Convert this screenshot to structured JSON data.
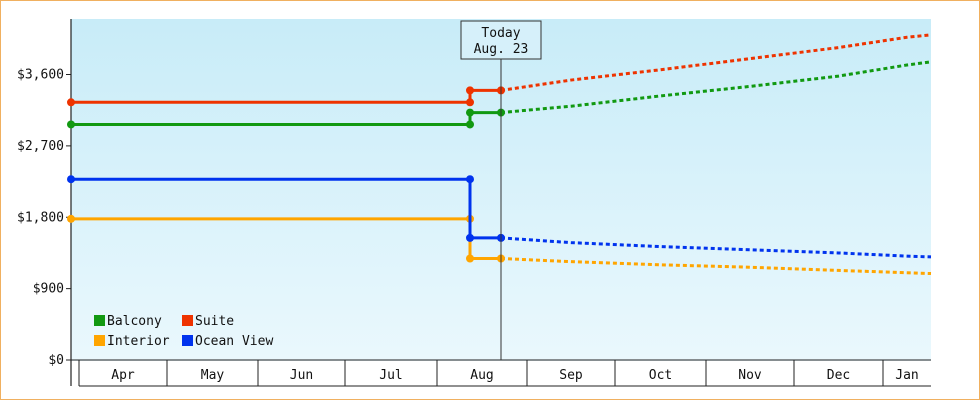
{
  "chart_data": {
    "type": "line",
    "title": "",
    "xlabel": "",
    "ylabel": "",
    "y_axis": {
      "min": 0,
      "max": 4300,
      "ticks": [
        0,
        900,
        1800,
        2700,
        3600
      ],
      "tick_labels": [
        "$0",
        "$900",
        "$1,800",
        "$2,700",
        "$3,600"
      ]
    },
    "x_axis": {
      "months": [
        "Apr",
        "May",
        "Jun",
        "Jul",
        "Aug",
        "Sep",
        "Oct",
        "Nov",
        "Dec",
        "Jan"
      ]
    },
    "today_marker": {
      "line1": "Today",
      "line2": "Aug. 23"
    },
    "background_gradient": [
      "#c8ecf8",
      "#eaf8fd"
    ],
    "grid": false,
    "legend_position": "bottom-left",
    "series": [
      {
        "name": "Balcony",
        "color": "#119911",
        "history": [
          [
            "Apr",
            2970
          ],
          [
            "Aug",
            2970
          ],
          [
            "Aug",
            3120
          ],
          [
            "Aug. 23",
            3120
          ]
        ],
        "forecast": [
          [
            "Aug. 23",
            3120
          ],
          [
            "Sep",
            3200
          ],
          [
            "Oct",
            3330
          ],
          [
            "Nov",
            3450
          ],
          [
            "Dec",
            3580
          ],
          [
            "Jan",
            3720
          ],
          [
            "Jan end",
            3760
          ]
        ]
      },
      {
        "name": "Suite",
        "color": "#ee3300",
        "history": [
          [
            "Apr",
            3250
          ],
          [
            "Aug",
            3250
          ],
          [
            "Aug",
            3400
          ],
          [
            "Aug. 23",
            3400
          ]
        ],
        "forecast": [
          [
            "Aug. 23",
            3400
          ],
          [
            "Sep",
            3530
          ],
          [
            "Oct",
            3660
          ],
          [
            "Nov",
            3800
          ],
          [
            "Dec",
            3940
          ],
          [
            "Jan",
            4070
          ],
          [
            "Jan end",
            4100
          ]
        ]
      },
      {
        "name": "Interior",
        "color": "#ffa500",
        "history": [
          [
            "Apr",
            1780
          ],
          [
            "Aug",
            1780
          ],
          [
            "Aug",
            1280
          ],
          [
            "Aug. 23",
            1280
          ]
        ],
        "forecast": [
          [
            "Aug. 23",
            1280
          ],
          [
            "Sep",
            1240
          ],
          [
            "Oct",
            1200
          ],
          [
            "Nov",
            1170
          ],
          [
            "Dec",
            1130
          ],
          [
            "Jan",
            1100
          ],
          [
            "Jan end",
            1090
          ]
        ]
      },
      {
        "name": "Ocean View",
        "color": "#0033ee",
        "history": [
          [
            "Apr",
            2280
          ],
          [
            "Aug",
            2280
          ],
          [
            "Aug",
            1540
          ],
          [
            "Aug. 23",
            1540
          ]
        ],
        "forecast": [
          [
            "Aug. 23",
            1540
          ],
          [
            "Sep",
            1480
          ],
          [
            "Oct",
            1430
          ],
          [
            "Nov",
            1390
          ],
          [
            "Dec",
            1350
          ],
          [
            "Jan",
            1310
          ],
          [
            "Jan end",
            1300
          ]
        ]
      }
    ]
  }
}
